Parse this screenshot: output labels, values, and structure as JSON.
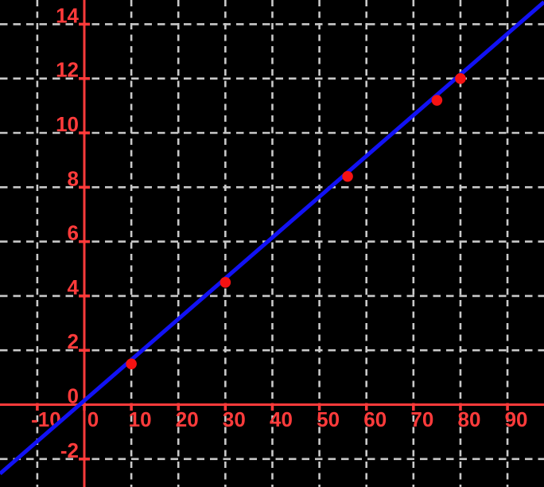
{
  "chart_data": {
    "type": "scatter",
    "title": "",
    "xlabel": "",
    "ylabel": "",
    "legend": "none",
    "grid": "dashed",
    "points": [
      [
        10,
        1.5
      ],
      [
        30,
        4.5
      ],
      [
        56,
        8.4
      ],
      [
        75,
        11.2
      ],
      [
        80,
        12
      ]
    ],
    "fit_line": {
      "slope": 0.15,
      "intercept": 0.15
    },
    "x_ticks": [
      -10,
      0,
      10,
      20,
      30,
      40,
      50,
      60,
      70,
      80,
      90
    ],
    "y_ticks": [
      -2,
      0,
      2,
      4,
      6,
      8,
      10,
      12,
      14
    ],
    "xlim": [
      -17.93,
      97.77
    ],
    "ylim": [
      -3.03,
      14.89
    ],
    "colors": {
      "background": "#000000",
      "axis": "#ff3b3b",
      "tick_label": "#ff3b3b",
      "grid": "#c9c9c9",
      "fit_line": "#1212f5",
      "point": "#f51212"
    }
  }
}
